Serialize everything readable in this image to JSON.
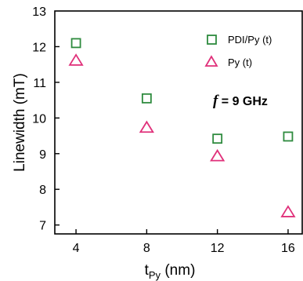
{
  "chart_data": {
    "type": "scatter",
    "xlabel": "t",
    "xlabel_subscript": "Py",
    "xlabel_unit": " (nm)",
    "ylabel": "Linewidth (mT)",
    "xlim": [
      2.8,
      16.8
    ],
    "ylim": [
      6.75,
      13
    ],
    "xticks": [
      4,
      8,
      12,
      16
    ],
    "xtick_labels": [
      "4",
      "8",
      "12",
      "16"
    ],
    "yticks": [
      7,
      8,
      9,
      10,
      11,
      12,
      13
    ],
    "ytick_labels": [
      "7",
      "8",
      "9",
      "10",
      "11",
      "12",
      "13"
    ],
    "grid": false,
    "legend_position": "top-right",
    "annotation": {
      "symbol": "f",
      "text": " = 9 GHz"
    },
    "series": [
      {
        "name": "PDI/Py (t)",
        "marker": "square",
        "color": "#2e8b3e",
        "x": [
          4,
          8,
          12,
          16
        ],
        "y": [
          12.1,
          10.55,
          9.42,
          9.48
        ]
      },
      {
        "name": "Py (t)",
        "marker": "triangle",
        "color": "#e0307a",
        "x": [
          4,
          8,
          12,
          16
        ],
        "y": [
          11.6,
          9.72,
          8.92,
          7.35
        ]
      }
    ]
  }
}
